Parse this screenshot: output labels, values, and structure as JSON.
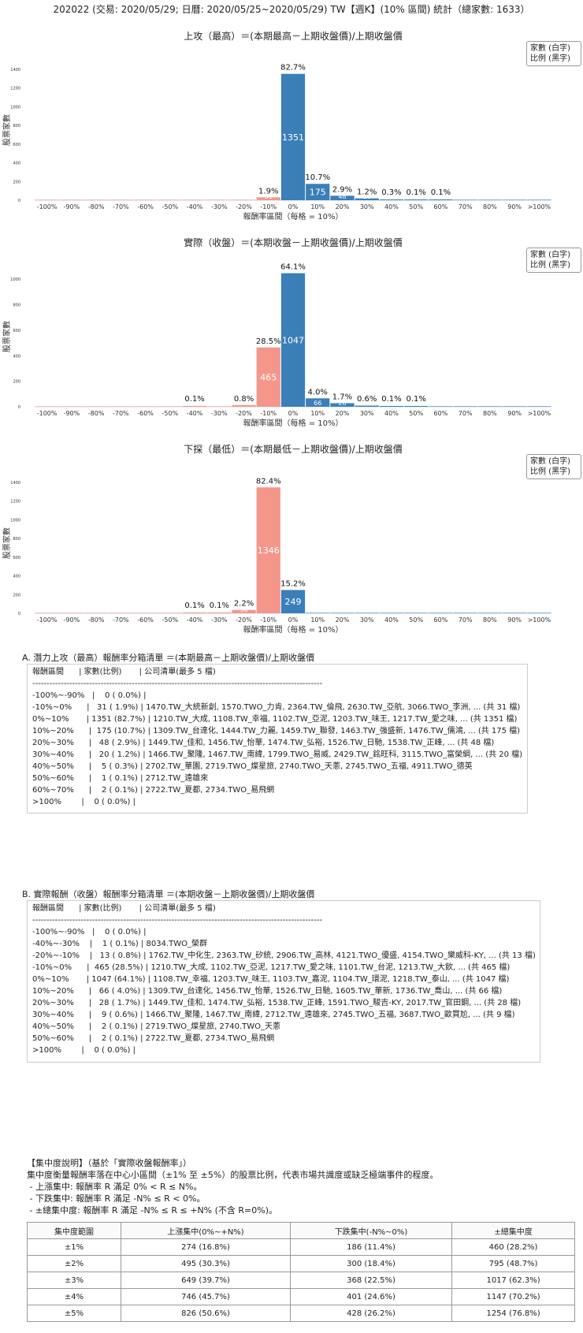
{
  "header": "202022 (交易: 2020/05/29; 日曆: 2020/05/25~2020/05/29) TW【週K】(10% 區間) 統計（總家數: 1633）",
  "legend": [
    "家數 (白字)",
    "比例 (黑字)"
  ],
  "chart_data": [
    {
      "type": "bar",
      "title": "上攻（最高）＝(本期最高－上期收盤價)/上期收盤價",
      "xlabel": "報酬率區間（每格 = 10%）",
      "ylabel": "股票家數",
      "categories": [
        "-100%",
        "-90%",
        "-80%",
        "-70%",
        "-60%",
        "-50%",
        "-40%",
        "-30%",
        "-20%",
        "-10%",
        "0%",
        "10%",
        "20%",
        "30%",
        "40%",
        "50%",
        "60%",
        "70%",
        "80%",
        "90%",
        ">100%"
      ],
      "values": [
        0,
        0,
        0,
        0,
        0,
        0,
        0,
        0,
        0,
        31,
        1351,
        175,
        48,
        20,
        5,
        1,
        2,
        0,
        0,
        0,
        0
      ],
      "pct_labels": [
        "",
        "",
        "",
        "",
        "",
        "",
        "",
        "",
        "",
        "1.9%",
        "82.7%",
        "10.7%",
        "2.9%",
        "1.2%",
        "0.3%",
        "0.1%",
        "0.1%",
        "",
        "",
        "",
        ""
      ],
      "count_labels": [
        "",
        "",
        "",
        "",
        "",
        "",
        "",
        "",
        "",
        "31",
        "1351",
        "175",
        "48",
        "20",
        "5",
        "1",
        "2",
        "",
        "",
        "",
        ""
      ],
      "yticks": [
        0,
        200,
        400,
        600,
        800,
        1000,
        1200,
        1400
      ],
      "ylim": [
        0,
        1500
      ]
    },
    {
      "type": "bar",
      "title": "實際（收盤）＝(本期收盤－上期收盤價)/上期收盤價",
      "xlabel": "報酬率區間（每格 = 10%）",
      "ylabel": "股票家數",
      "categories": [
        "-100%",
        "-90%",
        "-80%",
        "-70%",
        "-60%",
        "-50%",
        "-40%",
        "-30%",
        "-20%",
        "-10%",
        "0%",
        "10%",
        "20%",
        "30%",
        "40%",
        "50%",
        "60%",
        "70%",
        "80%",
        "90%",
        ">100%"
      ],
      "values": [
        0,
        0,
        0,
        0,
        0,
        0,
        1,
        0,
        13,
        465,
        1047,
        66,
        28,
        9,
        2,
        2,
        0,
        0,
        0,
        0,
        0
      ],
      "pct_labels": [
        "",
        "",
        "",
        "",
        "",
        "",
        "0.1%",
        "",
        "0.8%",
        "28.5%",
        "64.1%",
        "4.0%",
        "1.7%",
        "0.6%",
        "0.1%",
        "0.1%",
        "",
        "",
        "",
        "",
        ""
      ],
      "count_labels": [
        "",
        "",
        "",
        "",
        "",
        "",
        "1",
        "",
        "13",
        "465",
        "1047",
        "66",
        "28",
        "9",
        "2",
        "2",
        "",
        "",
        "",
        "",
        ""
      ],
      "yticks": [
        0,
        200,
        400,
        600,
        800,
        1000
      ],
      "ylim": [
        0,
        1100
      ]
    },
    {
      "type": "bar",
      "title": "下探（最低）＝(本期最低－上期收盤價)/上期收盤價",
      "xlabel": "報酬率區間（每格 = 10%）",
      "ylabel": "股票家數",
      "categories": [
        "-100%",
        "-90%",
        "-80%",
        "-70%",
        "-60%",
        "-50%",
        "-40%",
        "-30%",
        "-20%",
        "-10%",
        "0%",
        "10%",
        "20%",
        "30%",
        "40%",
        "50%",
        "60%",
        "70%",
        "80%",
        "90%",
        ">100%"
      ],
      "values": [
        0,
        0,
        0,
        0,
        0,
        0,
        1,
        1,
        36,
        1346,
        249,
        0,
        0,
        0,
        0,
        0,
        0,
        0,
        0,
        0,
        0
      ],
      "pct_labels": [
        "",
        "",
        "",
        "",
        "",
        "",
        "0.1%",
        "0.1%",
        "2.2%",
        "82.4%",
        "15.2%",
        "",
        "",
        "",
        "",
        "",
        "",
        "",
        "",
        "",
        ""
      ],
      "count_labels": [
        "",
        "",
        "",
        "",
        "",
        "",
        "1",
        "1",
        "36",
        "1346",
        "249",
        "",
        "",
        "",
        "",
        "",
        "",
        "",
        "",
        "",
        ""
      ],
      "yticks": [
        0,
        200,
        400,
        600,
        800,
        1000,
        1200,
        1400
      ],
      "ylim": [
        0,
        1500
      ]
    }
  ],
  "colors": {
    "positive": "#3a7fb8",
    "negative": "#f4968a"
  },
  "listA": {
    "title": "A. 潛力上攻（最高）報酬率分箱清單 ＝(本期最高－上期收盤價)/上期收盤價",
    "lines": [
      "報酬區間      | 家數(比例)       | 公司清單(最多 5 檔)",
      "------------------------------------------------------------------------------------------------------",
      "-100%~-90%   |    0 ( 0.0%) |",
      "-10%~0%      |   31 ( 1.9%) | 1470.TW_大統新創, 1570.TWO_力肯, 2364.TW_倫飛, 2630.TW_亞航, 3066.TWO_李洲, ... (共 31 檔)",
      "0%~10%       | 1351 (82.7%) | 1210.TW_大成, 1108.TW_幸福, 1102.TW_亞泥, 1203.TW_味王, 1217.TW_愛之味, ... (共 1351 檔)",
      "10%~20%      |  175 (10.7%) | 1309.TW_台達化, 1444.TW_力麗, 1459.TW_聯發, 1463.TW_強盛新, 1476.TW_儒鴻, ... (共 175 檔)",
      "20%~30%      |   48 ( 2.9%) | 1449.TW_佳和, 1456.TW_怡華, 1474.TW_弘裕, 1526.TW_日馳, 1538.TW_正峰, ... (共 48 檔)",
      "30%~40%      |   20 ( 1.2%) | 1466.TW_聚隆, 1467.TW_南緯, 1799.TWO_易威, 2429.TW_銘旺科, 3115.TWO_富榮綱, ... (共 20 檔)",
      "40%~50%      |    5 ( 0.3%) | 2702.TW_華園, 2719.TWO_燦星旅, 2740.TWO_天蔥, 2745.TWO_五福, 4911.TWO_德英",
      "50%~60%      |    1 ( 0.1%) | 2712.TW_遠雄來",
      "60%~70%      |    2 ( 0.1%) | 2722.TW_夏都, 2734.TWO_易飛網",
      ">100%        |    0 ( 0.0%) |"
    ]
  },
  "listB": {
    "title": "B. 實際報酬（收盤）報酬率分箱清單 ＝(本期收盤－上期收盤價)/上期收盤價",
    "lines": [
      "報酬區間      | 家數(比例)       | 公司清單(最多 5 檔)",
      "------------------------------------------------------------------------------------------------------",
      "-100%~-90%   |    0 ( 0.0%) |",
      "-40%~-30%    |    1 ( 0.1%) | 8034.TWO_榮群",
      "-20%~-10%    |   13 ( 0.8%) | 1762.TW_中化生, 2363.TW_矽統, 2906.TW_高林, 4121.TWO_優盛, 4154.TWO_樂威科-KY, ... (共 13 檔)",
      "-10%~0%      |  465 (28.5%) | 1210.TW_大成, 1102.TW_亞泥, 1217.TW_愛之味, 1101.TW_台泥, 1213.TW_大飲, ... (共 465 檔)",
      "0%~10%       | 1047 (64.1%) | 1108.TW_幸福, 1203.TW_味王, 1103.TW_嘉泥, 1104.TW_環泥, 1218.TW_泰山, ... (共 1047 檔)",
      "10%~20%      |   66 ( 4.0%) | 1309.TW_台達化, 1456.TW_怡華, 1526.TW_日馳, 1605.TW_華新, 1736.TW_喬山, ... (共 66 檔)",
      "20%~30%      |   28 ( 1.7%) | 1449.TW_佳和, 1474.TW_弘裕, 1538.TW_正峰, 1591.TWO_駿吉-KY, 2017.TW_官田鋼, ... (共 28 檔)",
      "30%~40%      |    9 ( 0.6%) | 1466.TW_聚隆, 1467.TW_南緯, 2712.TW_遠雄來, 2745.TWO_五福, 3687.TWO_歐買尬, ... (共 9 檔)",
      "40%~50%      |    2 ( 0.1%) | 2719.TWO_燦星旅, 2740.TWO_天蔥",
      "50%~60%      |    2 ( 0.1%) | 2722.TW_夏都, 2734.TWO_易飛網",
      ">100%        |    0 ( 0.0%) |"
    ]
  },
  "concentration": {
    "lines": [
      "【集中度說明】（基於「實際收盤報酬率」）",
      "集中度衡量報酬率落在中心小區間（±1% 至 ±5%）的股票比例，代表市場共識度或缺乏極端事件的程度。",
      " - 上漲集中: 報酬率 R 滿足 0% < R ≤ N%。",
      " - 下跌集中: 報酬率 R 滿足 -N% ≤ R < 0%。",
      " - ±總集中度: 報酬率 R 滿足 -N% ≤ R ≤ +N% (不含 R=0%)。"
    ],
    "headers": [
      "集中度範圍",
      "上漲集中(0%~+N%)",
      "下跌集中(-N%~0%)",
      "±總集中度"
    ],
    "rows": [
      [
        "±1%",
        "274 (16.8%)",
        "186 (11.4%)",
        "460 (28.2%)"
      ],
      [
        "±2%",
        "495 (30.3%)",
        "300 (18.4%)",
        "795 (48.7%)"
      ],
      [
        "±3%",
        "649 (39.7%)",
        "368 (22.5%)",
        "1017 (62.3%)"
      ],
      [
        "±4%",
        "746 (45.7%)",
        "401 (24.6%)",
        "1147 (70.2%)"
      ],
      [
        "±5%",
        "826 (50.6%)",
        "428 (26.2%)",
        "1254 (76.8%)"
      ]
    ]
  }
}
